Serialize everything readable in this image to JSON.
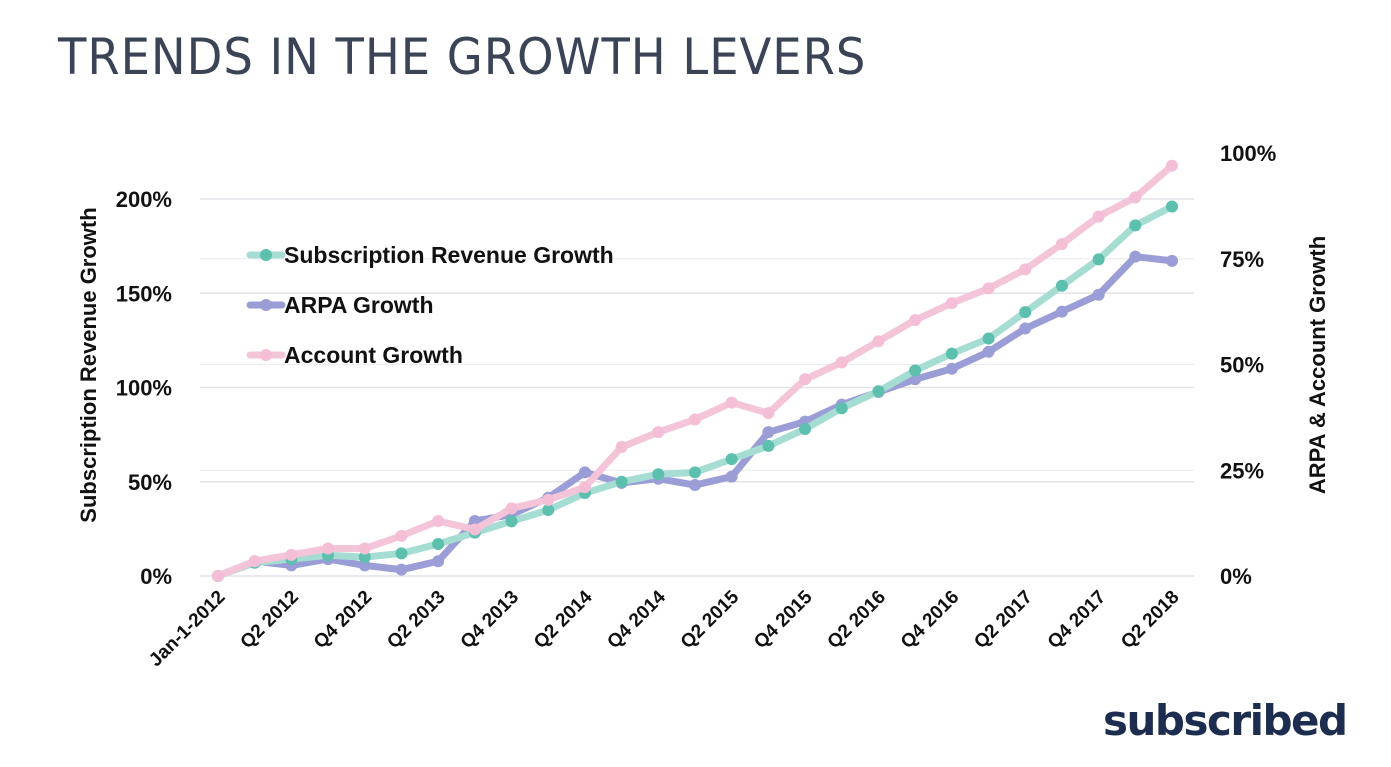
{
  "slide": {
    "title": "TRENDS IN THE GROWTH LEVERS",
    "logo_text": "subscribed"
  },
  "chart_data": {
    "type": "line",
    "title": "TRENDS IN THE GROWTH LEVERS",
    "xlabel": "",
    "ylabel": "Subscription Revenue Growth",
    "y2label": "ARPA & Account Growth",
    "ylim": [
      0,
      200
    ],
    "y2lim": [
      0,
      100
    ],
    "yticks": [
      "0%",
      "50%",
      "100%",
      "150%",
      "200%"
    ],
    "y2ticks": [
      "0%",
      "25%",
      "50%",
      "75%",
      "100%"
    ],
    "grid": true,
    "legend_position": "top-left",
    "x": [
      "Jan-1-2012",
      "Q1 2012",
      "Q2 2012",
      "Q3 2012",
      "Q4 2012",
      "Q1 2013",
      "Q2 2013",
      "Q3 2013",
      "Q4 2013",
      "Q1 2014",
      "Q2 2014",
      "Q3 2014",
      "Q4 2014",
      "Q1 2015",
      "Q2 2015",
      "Q3 2015",
      "Q4 2015",
      "Q1 2016",
      "Q2 2016",
      "Q3 2016",
      "Q4 2016",
      "Q1 2017",
      "Q2 2017",
      "Q3 2017",
      "Q4 2017",
      "Q1 2018",
      "Q2 2018"
    ],
    "xtick_labels": [
      "Jan-1-2012",
      "Q2 2012",
      "Q4 2012",
      "Q2 2013",
      "Q4 2013",
      "Q2 2014",
      "Q4 2014",
      "Q2 2015",
      "Q4 2015",
      "Q2 2016",
      "Q4 2016",
      "Q2 2017",
      "Q4 2017",
      "Q2 2018"
    ],
    "series": [
      {
        "name": "Subscription Revenue Growth",
        "axis": "left",
        "color": "#5dbfae",
        "line_color": "#a6ddd3",
        "values": [
          0,
          7,
          9,
          11,
          10,
          12,
          17,
          23,
          29,
          35,
          44,
          50,
          54,
          55,
          62,
          69,
          78,
          89,
          98,
          109,
          118,
          126,
          140,
          154,
          168,
          186,
          196
        ]
      },
      {
        "name": "ARPA Growth",
        "axis": "right",
        "color": "#9b9dd6",
        "line_color": "#9b9dd6",
        "values": [
          0,
          3.5,
          2.5,
          4,
          2.5,
          1.5,
          3.5,
          13,
          14.5,
          18.5,
          24.5,
          22,
          23,
          21.5,
          23.5,
          34,
          36.5,
          40.5,
          43.5,
          46.5,
          49,
          53,
          58.5,
          62.5,
          66.5,
          75.5,
          74.5
        ]
      },
      {
        "name": "Account Growth",
        "axis": "right",
        "color": "#f4bfd6",
        "line_color": "#f4c4d9",
        "values": [
          0,
          3.5,
          5,
          6.5,
          6.5,
          9.5,
          13,
          11,
          16,
          18,
          21,
          30.5,
          34,
          37,
          41,
          38.5,
          46.5,
          50.5,
          55.5,
          60.5,
          64.5,
          68,
          72.5,
          78.5,
          85,
          89.5,
          97
        ]
      }
    ]
  }
}
